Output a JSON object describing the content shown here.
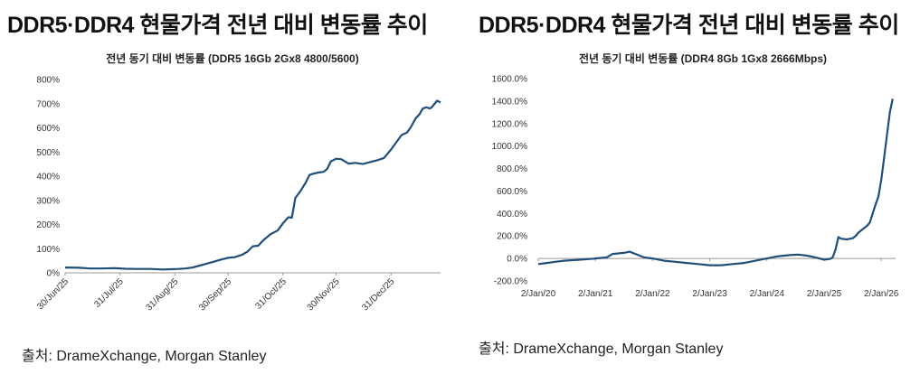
{
  "left": {
    "headline": "DDR5·DDR4 현물가격 전년 대비 변동률 추이",
    "source": "출처: DrameXchange, Morgan Stanley"
  },
  "right": {
    "headline": "DDR5·DDR4 현물가격 전년 대비 변동률 추이",
    "source": "출처: DrameXchange, Morgan Stanley"
  },
  "colors": {
    "line": "#1f4e79",
    "axis": "#999999"
  },
  "chart_data": [
    {
      "type": "line",
      "title": "전년 동기 대비 변동률 (DDR5 16Gb 2Gx8 4800/5600)",
      "xlabel": "",
      "ylabel": "",
      "ylim": [
        0,
        800
      ],
      "y_ticks": [
        "0%",
        "100%",
        "200%",
        "300%",
        "400%",
        "500%",
        "600%",
        "700%",
        "800%"
      ],
      "x_tick_labels": [
        "30/Jun/25",
        "31/Jul/25",
        "31/Aug/25",
        "30/Sep/25",
        "31/Oct/25",
        "30/Nov/25",
        "31/Dec/25"
      ],
      "x_tick_days": [
        0,
        31,
        62,
        92,
        123,
        153,
        184
      ],
      "x_range_days": [
        0,
        212
      ],
      "series": [
        {
          "name": "DDR5 16Gb 2Gx8 4800/5600",
          "x_days": [
            0,
            8,
            14,
            20,
            28,
            34,
            40,
            48,
            55,
            60,
            64,
            68,
            72,
            76,
            80,
            84,
            88,
            92,
            96,
            100,
            103,
            106,
            109,
            112,
            116,
            120,
            123,
            126,
            128,
            130,
            133,
            136,
            138,
            140,
            143,
            146,
            148,
            150,
            153,
            156,
            160,
            164,
            168,
            172,
            176,
            180,
            184,
            187,
            190,
            193,
            195,
            198,
            200,
            202,
            204,
            206,
            207,
            210,
            212
          ],
          "values": [
            22,
            21,
            18,
            18,
            19,
            17,
            16,
            16,
            14,
            15,
            16,
            18,
            22,
            30,
            38,
            46,
            55,
            62,
            65,
            75,
            88,
            110,
            112,
            135,
            160,
            175,
            205,
            230,
            228,
            310,
            340,
            375,
            405,
            410,
            415,
            418,
            430,
            460,
            472,
            470,
            452,
            455,
            450,
            458,
            465,
            475,
            510,
            540,
            570,
            580,
            600,
            640,
            655,
            680,
            685,
            680,
            685,
            712,
            705
          ]
        }
      ]
    },
    {
      "type": "line",
      "title": "전년 동기 대비 변동률 (DDR4 8Gb 1Gx8 2666Mbps)",
      "xlabel": "",
      "ylabel": "",
      "ylim": [
        -200,
        1600
      ],
      "y_ticks": [
        "-200.0%",
        "0.0%",
        "200.0%",
        "400.0%",
        "600.0%",
        "800.0%",
        "1000.0%",
        "1200.0%",
        "1400.0%",
        "1600.0%"
      ],
      "x_tick_labels": [
        "2/Jan/20",
        "2/Jan/21",
        "2/Jan/22",
        "2/Jan/23",
        "2/Jan/24",
        "2/Jan/25",
        "2/Jan/26"
      ],
      "x_range_years": [
        2020.0,
        2026.25
      ],
      "series": [
        {
          "name": "DDR4 8Gb 1Gx8 2666Mbps",
          "x_years": [
            2020.0,
            2020.15,
            2020.3,
            2020.45,
            2020.6,
            2020.75,
            2020.9,
            2021.0,
            2021.1,
            2021.2,
            2021.3,
            2021.4,
            2021.5,
            2021.6,
            2021.7,
            2021.85,
            2022.0,
            2022.2,
            2022.4,
            2022.6,
            2022.8,
            2023.0,
            2023.2,
            2023.4,
            2023.6,
            2023.8,
            2024.0,
            2024.2,
            2024.4,
            2024.55,
            2024.7,
            2024.85,
            2025.0,
            2025.1,
            2025.15,
            2025.2,
            2025.25,
            2025.3,
            2025.4,
            2025.5,
            2025.55,
            2025.6,
            2025.65,
            2025.7,
            2025.75,
            2025.8,
            2025.85,
            2025.9,
            2025.95,
            2026.0,
            2026.05,
            2026.1,
            2026.15,
            2026.2
          ],
          "values": [
            -50,
            -40,
            -30,
            -20,
            -15,
            -10,
            -5,
            0,
            5,
            10,
            40,
            45,
            50,
            60,
            40,
            10,
            0,
            -20,
            -30,
            -40,
            -50,
            -60,
            -60,
            -50,
            -40,
            -20,
            0,
            20,
            30,
            35,
            25,
            10,
            -10,
            -5,
            10,
            80,
            190,
            175,
            170,
            180,
            200,
            230,
            250,
            270,
            290,
            320,
            400,
            480,
            550,
            700,
            900,
            1100,
            1300,
            1420
          ]
        }
      ]
    }
  ]
}
